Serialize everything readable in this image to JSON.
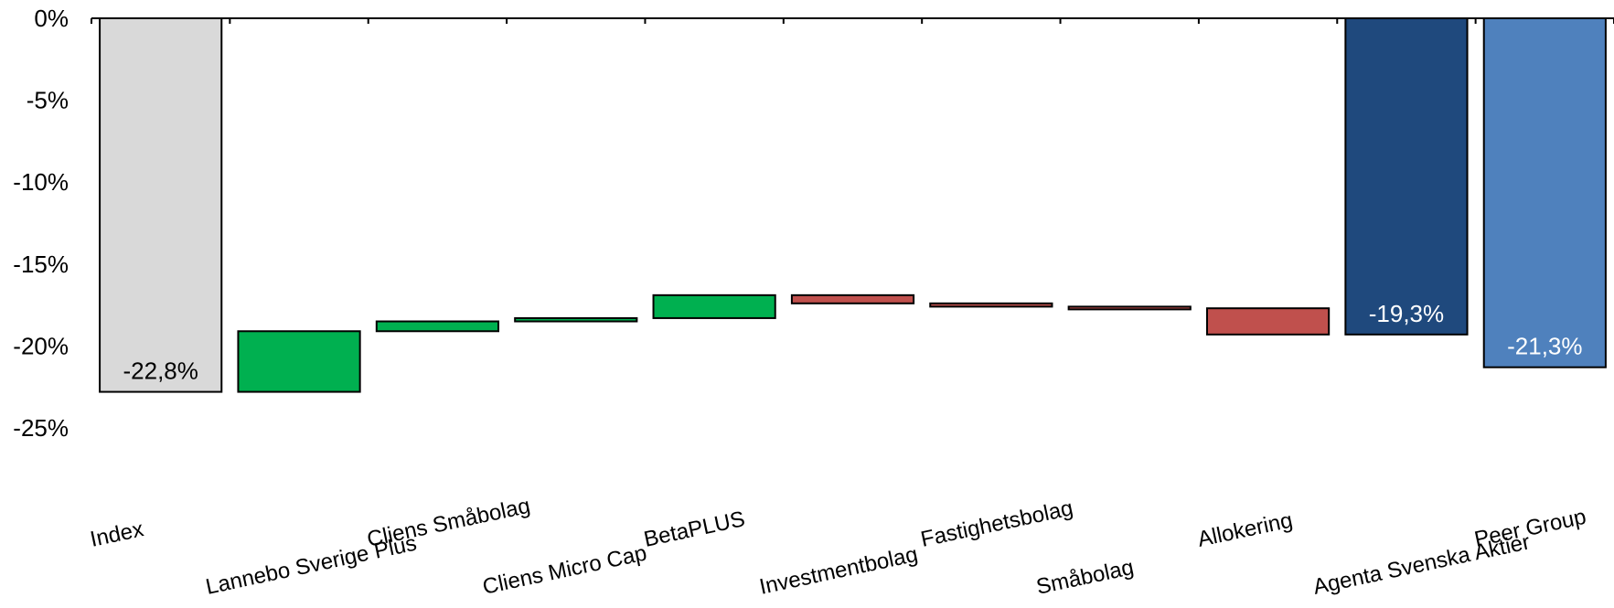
{
  "chart_data": {
    "type": "bar",
    "subtype": "waterfall",
    "title": "",
    "xlabel": "",
    "ylabel": "",
    "ylim": [
      -25,
      0
    ],
    "yticks": [
      "0%",
      "-5%",
      "-10%",
      "-15%",
      "-20%",
      "-25%"
    ],
    "ytick_values": [
      0,
      -5,
      -10,
      -15,
      -20,
      -25
    ],
    "grid": false,
    "legend": "none",
    "categories": [
      "Index",
      "Lannebo Sverige Plus",
      "Cliens Småbolag",
      "Cliens Micro Cap",
      "BetaPLUS",
      "Investmentbolag",
      "Fastighetsbolag",
      "Småbolag",
      "Allokering",
      "Agenta Svenska Aktier",
      "Peer Group"
    ],
    "bars": [
      {
        "category": "Index",
        "kind": "total",
        "start": 0,
        "end": -22.8,
        "label": "-22,8%",
        "color": "#d9d9d9",
        "label_color": "#000000"
      },
      {
        "category": "Lannebo Sverige Plus",
        "kind": "change",
        "start": -22.8,
        "end": -19.1,
        "color": "#00b050"
      },
      {
        "category": "Cliens Småbolag",
        "kind": "change",
        "start": -19.1,
        "end": -18.5,
        "color": "#00b050"
      },
      {
        "category": "Cliens Micro Cap",
        "kind": "change",
        "start": -18.5,
        "end": -18.3,
        "color": "#00b050"
      },
      {
        "category": "BetaPLUS",
        "kind": "change",
        "start": -18.3,
        "end": -16.9,
        "color": "#00b050"
      },
      {
        "category": "Investmentbolag",
        "kind": "change",
        "start": -16.9,
        "end": -17.4,
        "color": "#c0504d"
      },
      {
        "category": "Fastighetsbolag",
        "kind": "change",
        "start": -17.4,
        "end": -17.6,
        "color": "#c0504d"
      },
      {
        "category": "Småbolag",
        "kind": "change",
        "start": -17.6,
        "end": -17.7,
        "color": "#c0504d"
      },
      {
        "category": "Allokering",
        "kind": "change",
        "start": -17.7,
        "end": -19.3,
        "color": "#c0504d"
      },
      {
        "category": "Agenta Svenska Aktier",
        "kind": "total",
        "start": 0,
        "end": -19.3,
        "label": "-19,3%",
        "color": "#1f497d",
        "label_color": "#ffffff"
      },
      {
        "category": "Peer Group",
        "kind": "total",
        "start": 0,
        "end": -21.3,
        "label": "-21,3%",
        "color": "#4f81bd",
        "label_color": "#ffffff"
      }
    ]
  }
}
